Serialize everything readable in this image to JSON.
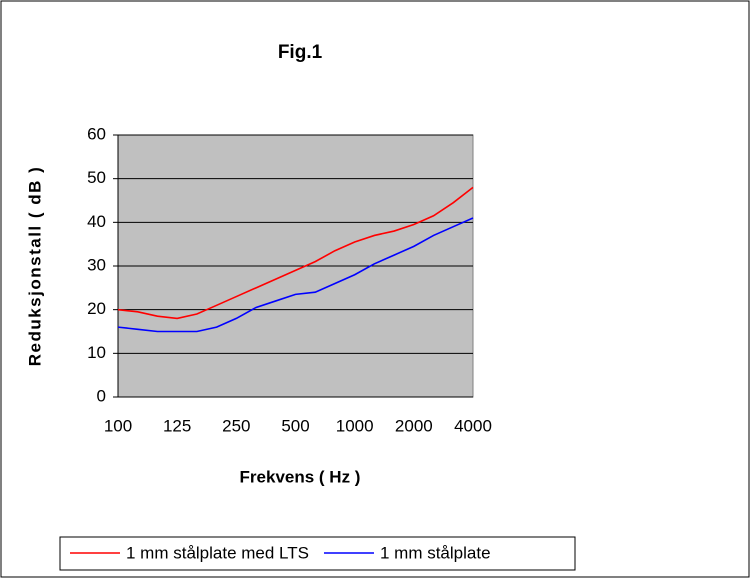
{
  "chart_data": {
    "type": "line",
    "title": "Fig.1",
    "x_label": "Frekvens ( Hz )",
    "y_label": "Reduksjonstall ( dB )",
    "categories": [
      "100",
      null,
      null,
      "125",
      null,
      null,
      "250",
      null,
      null,
      "500",
      null,
      null,
      "1000",
      null,
      null,
      "2000",
      null,
      null,
      "4000"
    ],
    "series": [
      {
        "name": "1 mm stålplate med LTS",
        "color": "#ff0000",
        "values": [
          20,
          19.5,
          18.5,
          18,
          19,
          21,
          23,
          25,
          27,
          29,
          31,
          33.5,
          35.5,
          37,
          38,
          39.5,
          41.5,
          44.5,
          48
        ]
      },
      {
        "name": "1 mm stålplate",
        "color": "#0000ff",
        "values": [
          16,
          15.5,
          15,
          15,
          15,
          16,
          18,
          20.5,
          22,
          23.5,
          24,
          26,
          28,
          30.5,
          32.5,
          34.5,
          37,
          39,
          41
        ]
      }
    ],
    "ylim": [
      0,
      60
    ],
    "yticks": [
      0,
      10,
      20,
      30,
      40,
      50,
      60
    ],
    "grid": true,
    "legend": "bottom"
  }
}
